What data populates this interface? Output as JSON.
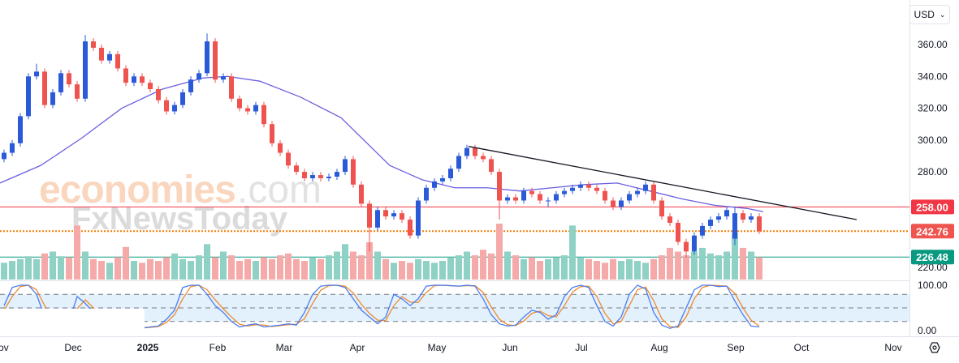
{
  "header": {
    "currency": "USD",
    "currency_icon": "chevron-down-icon"
  },
  "watermark": {
    "brand1": "economies",
    "brand1_suffix": ".com",
    "brand2": "FxNewsToday"
  },
  "settings_icon": "gear-icon",
  "chart_data": {
    "type": "candlestick",
    "price_axis": {
      "ticks": [
        360,
        340,
        320,
        300,
        280,
        260,
        240,
        220
      ],
      "tick_labels": [
        "360.00",
        "340.00",
        "320.00",
        "300.00",
        "280.00",
        "",
        "",
        "220.00"
      ],
      "ylim": [
        220,
        360
      ]
    },
    "x_ticks": [
      {
        "label": "Nov",
        "bar": -0.5
      },
      {
        "label": "Dec",
        "bar": 8.5
      },
      {
        "label": "2025",
        "bar": 17.7,
        "bold": true
      },
      {
        "label": "Feb",
        "bar": 26.3
      },
      {
        "label": "Mar",
        "bar": 34.5
      },
      {
        "label": "Apr",
        "bar": 43.5
      },
      {
        "label": "May",
        "bar": 53.3
      },
      {
        "label": "Jun",
        "bar": 62.3
      },
      {
        "label": "Jul",
        "bar": 71.1
      },
      {
        "label": "Aug",
        "bar": 80.7
      },
      {
        "label": "Sep",
        "bar": 90.1
      },
      {
        "label": "Oct",
        "bar": 98.2
      },
      {
        "label": "Nov",
        "bar": 109.5
      }
    ],
    "candles_ohlc": [
      [
        288,
        294,
        286,
        292
      ],
      [
        292,
        300,
        290,
        298
      ],
      [
        298,
        317,
        296,
        315
      ],
      [
        315,
        342,
        313,
        340
      ],
      [
        340,
        348,
        338,
        343
      ],
      [
        343,
        345,
        320,
        322
      ],
      [
        322,
        332,
        320,
        330
      ],
      [
        330,
        344,
        328,
        342
      ],
      [
        342,
        344,
        333,
        335
      ],
      [
        335,
        337,
        324,
        326
      ],
      [
        326,
        366,
        324,
        362
      ],
      [
        362,
        364,
        356,
        358
      ],
      [
        358,
        360,
        348,
        350
      ],
      [
        350,
        356,
        348,
        354
      ],
      [
        354,
        356,
        343,
        345
      ],
      [
        345,
        347,
        334,
        336
      ],
      [
        336,
        342,
        334,
        340
      ],
      [
        340,
        342,
        334,
        336
      ],
      [
        336,
        338,
        330,
        332
      ],
      [
        332,
        334,
        323,
        325
      ],
      [
        325,
        327,
        316,
        318
      ],
      [
        318,
        324,
        316,
        322
      ],
      [
        322,
        332,
        320,
        330
      ],
      [
        330,
        340,
        328,
        338
      ],
      [
        338,
        344,
        336,
        342
      ],
      [
        342,
        367,
        340,
        362
      ],
      [
        362,
        364,
        336,
        338
      ],
      [
        338,
        342,
        336,
        340
      ],
      [
        340,
        342,
        324,
        326
      ],
      [
        326,
        328,
        318,
        320
      ],
      [
        320,
        322,
        316,
        318
      ],
      [
        318,
        324,
        316,
        322
      ],
      [
        322,
        324,
        308,
        310
      ],
      [
        310,
        312,
        296,
        298
      ],
      [
        298,
        300,
        290,
        292
      ],
      [
        292,
        294,
        282,
        284
      ],
      [
        284,
        286,
        278,
        280
      ],
      [
        280,
        282,
        274,
        276
      ],
      [
        276,
        280,
        274,
        278
      ],
      [
        278,
        280,
        274,
        276
      ],
      [
        276,
        279,
        274,
        277
      ],
      [
        277,
        282,
        275,
        280
      ],
      [
        280,
        290,
        278,
        288
      ],
      [
        288,
        290,
        270,
        272
      ],
      [
        272,
        274,
        258,
        260
      ],
      [
        260,
        262,
        230,
        245
      ],
      [
        245,
        258,
        243,
        256
      ],
      [
        256,
        258,
        250,
        252
      ],
      [
        252,
        256,
        250,
        254
      ],
      [
        254,
        256,
        248,
        250
      ],
      [
        250,
        252,
        238,
        240
      ],
      [
        240,
        264,
        238,
        262
      ],
      [
        262,
        272,
        260,
        270
      ],
      [
        270,
        276,
        268,
        274
      ],
      [
        274,
        278,
        272,
        276
      ],
      [
        276,
        284,
        274,
        282
      ],
      [
        282,
        292,
        280,
        290
      ],
      [
        290,
        297,
        288,
        295
      ],
      [
        295,
        297,
        288,
        290
      ],
      [
        290,
        292,
        286,
        288
      ],
      [
        288,
        290,
        278,
        280
      ],
      [
        280,
        282,
        250,
        262
      ],
      [
        262,
        266,
        260,
        264
      ],
      [
        264,
        266,
        260,
        262
      ],
      [
        262,
        270,
        260,
        268
      ],
      [
        268,
        270,
        264,
        266
      ],
      [
        266,
        268,
        260,
        262
      ],
      [
        262,
        264,
        258,
        262
      ],
      [
        262,
        268,
        260,
        266
      ],
      [
        266,
        270,
        264,
        268
      ],
      [
        268,
        272,
        266,
        270
      ],
      [
        270,
        274,
        268,
        272
      ],
      [
        272,
        274,
        268,
        270
      ],
      [
        270,
        272,
        266,
        268
      ],
      [
        268,
        270,
        260,
        262
      ],
      [
        262,
        264,
        256,
        258
      ],
      [
        258,
        264,
        256,
        262
      ],
      [
        262,
        268,
        260,
        266
      ],
      [
        266,
        270,
        264,
        268
      ],
      [
        268,
        274,
        266,
        272
      ],
      [
        272,
        274,
        260,
        262
      ],
      [
        262,
        264,
        250,
        252
      ],
      [
        252,
        254,
        246,
        248
      ],
      [
        248,
        250,
        234,
        236
      ],
      [
        236,
        238,
        226,
        230
      ],
      [
        230,
        242,
        228,
        240
      ],
      [
        240,
        248,
        238,
        246
      ],
      [
        246,
        252,
        244,
        250
      ],
      [
        250,
        254,
        248,
        252
      ],
      [
        252,
        258,
        250,
        256
      ],
      [
        238,
        258,
        234,
        254
      ],
      [
        254,
        256,
        248,
        250
      ],
      [
        250,
        254,
        248,
        252
      ],
      [
        252,
        254,
        241,
        242.76
      ]
    ],
    "moving_average": [
      [
        -0.5,
        273
      ],
      [
        4.5,
        284
      ],
      [
        9.5,
        301
      ],
      [
        14.5,
        320
      ],
      [
        19.5,
        332
      ],
      [
        24.5,
        339
      ],
      [
        27.5,
        340
      ],
      [
        31.5,
        337
      ],
      [
        36.5,
        327
      ],
      [
        41.5,
        314
      ],
      [
        44.5,
        299
      ],
      [
        47.5,
        284
      ],
      [
        51.5,
        275
      ],
      [
        55.5,
        270
      ],
      [
        59.5,
        270
      ],
      [
        63.5,
        268
      ],
      [
        67.5,
        270
      ],
      [
        71.5,
        272
      ],
      [
        75.5,
        273
      ],
      [
        79.5,
        268
      ],
      [
        83.5,
        263
      ],
      [
        87.5,
        259
      ],
      [
        91.5,
        257
      ],
      [
        93.5,
        255
      ]
    ],
    "trendline": [
      {
        "bar": 57.2,
        "value": 296
      },
      {
        "bar": 105,
        "value": 250
      }
    ],
    "horizontal_levels": [
      {
        "value": 258.0,
        "label": "258.00",
        "color": "#f23645",
        "style": "solid"
      },
      {
        "value": 242.76,
        "label": "242.76",
        "color": "#f57c00",
        "style": "dotted",
        "label_color": "#f0544f"
      },
      {
        "value": 226.48,
        "label": "226.48",
        "color": "#089981",
        "style": "solid"
      }
    ],
    "volume_relative": [
      18,
      20,
      22,
      25,
      22,
      28,
      30,
      25,
      24,
      58,
      30,
      22,
      20,
      18,
      24,
      35,
      20,
      18,
      22,
      20,
      24,
      28,
      22,
      20,
      26,
      38,
      24,
      30,
      26,
      20,
      22,
      20,
      24,
      22,
      26,
      28,
      22,
      20,
      24,
      22,
      26,
      30,
      38,
      30,
      26,
      40,
      30,
      22,
      18,
      20,
      18,
      22,
      20,
      18,
      20,
      24,
      26,
      30,
      26,
      32,
      28,
      60,
      30,
      26,
      22,
      24,
      20,
      22,
      24,
      26,
      58,
      24,
      22,
      20,
      18,
      22,
      20,
      22,
      20,
      18,
      22,
      26,
      34,
      30,
      26,
      30,
      34,
      28,
      26,
      30,
      50,
      34,
      30,
      24
    ],
    "stochastic": {
      "axis_labels": [
        "100.00",
        "0.00"
      ],
      "ylim": [
        0,
        100
      ],
      "levels": [
        80,
        50,
        20
      ],
      "k": [
        55,
        95,
        100,
        100,
        80,
        30,
        20,
        15,
        20,
        75,
        60,
        40,
        20,
        12,
        10,
        10,
        8,
        5,
        8,
        10,
        25,
        45,
        95,
        100,
        100,
        80,
        55,
        40,
        20,
        8,
        12,
        15,
        8,
        10,
        12,
        15,
        12,
        40,
        80,
        98,
        100,
        100,
        95,
        70,
        45,
        30,
        15,
        30,
        80,
        70,
        55,
        70,
        98,
        100,
        100,
        99,
        98,
        100,
        98,
        70,
        35,
        15,
        10,
        12,
        30,
        45,
        40,
        25,
        35,
        75,
        95,
        100,
        95,
        55,
        20,
        10,
        30,
        80,
        100,
        92,
        40,
        12,
        5,
        10,
        50,
        90,
        100,
        100,
        97,
        98,
        65,
        35,
        10,
        8
      ],
      "d": [
        45,
        75,
        97,
        100,
        90,
        55,
        25,
        18,
        17,
        48,
        68,
        50,
        30,
        16,
        11,
        10,
        9,
        7,
        7,
        9,
        18,
        35,
        70,
        97,
        100,
        90,
        68,
        48,
        30,
        14,
        10,
        13,
        12,
        9,
        11,
        13,
        14,
        26,
        60,
        89,
        99,
        100,
        98,
        83,
        58,
        38,
        23,
        22,
        55,
        75,
        63,
        62,
        84,
        99,
        100,
        99,
        98,
        99,
        99,
        84,
        52,
        25,
        13,
        11,
        21,
        38,
        43,
        33,
        30,
        55,
        85,
        97,
        98,
        75,
        38,
        15,
        20,
        55,
        90,
        96,
        66,
        26,
        9,
        7,
        30,
        70,
        95,
        100,
        99,
        98,
        82,
        50,
        23,
        10
      ]
    },
    "colors": {
      "up": "#2a5ad8",
      "down": "#ef5350",
      "vol_up": "#8fd1c4",
      "vol_down": "#f5a9a9",
      "ma": "#6a5fe0",
      "k": "#4a7cf0",
      "d": "#f08a2c",
      "trendline": "#131722",
      "stoch_band": "#e3f1fc"
    }
  }
}
